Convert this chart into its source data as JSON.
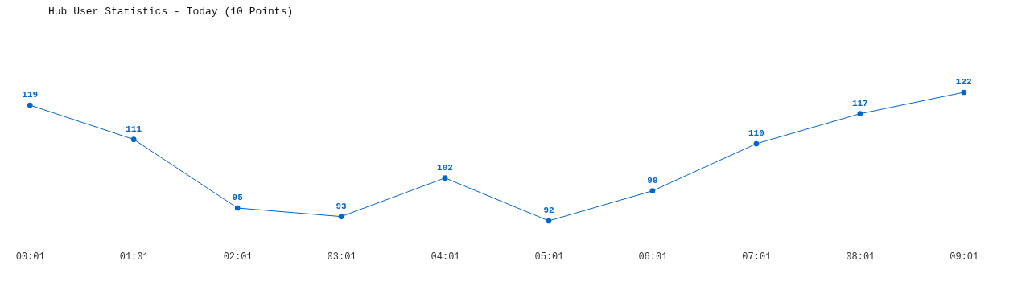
{
  "chart_data": {
    "type": "line",
    "title": "Hub User Statistics - Today (10 Points)",
    "categories": [
      "00:01",
      "01:01",
      "02:01",
      "03:01",
      "04:01",
      "05:01",
      "06:01",
      "07:01",
      "08:01",
      "09:01"
    ],
    "series": [
      {
        "color": "#0066cc",
        "values": [
          119,
          111,
          95,
          93,
          102,
          92,
          99,
          110,
          117,
          122
        ]
      }
    ],
    "data_labels": true,
    "marker": "circle"
  }
}
